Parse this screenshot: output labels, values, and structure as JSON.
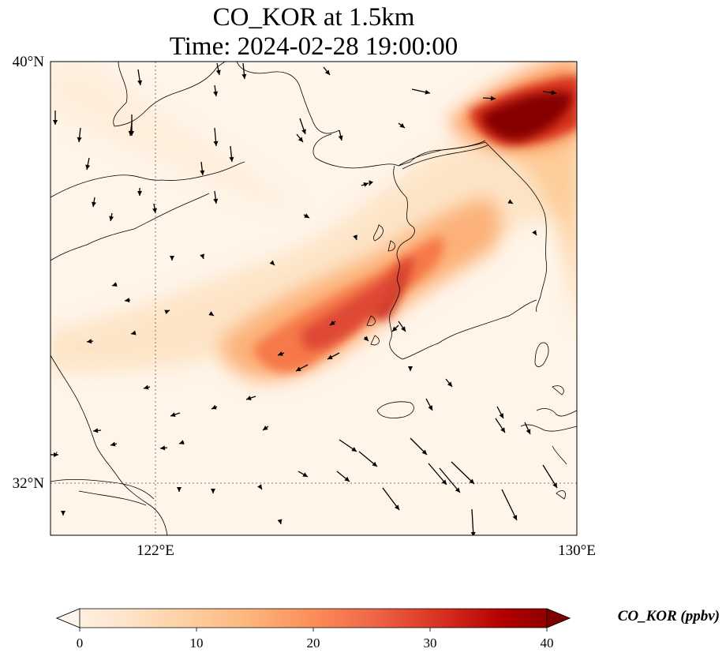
{
  "title": {
    "line1": "CO_KOR at 1.5km",
    "line2": "Time: 2024-02-28 19:00:00"
  },
  "axes": {
    "lat_labels": [
      {
        "value": 40,
        "text": "40°N"
      },
      {
        "value": 32,
        "text": "32°N"
      }
    ],
    "lon_labels": [
      {
        "value": 122,
        "text": "122°E"
      },
      {
        "value": 130,
        "text": "130°E"
      }
    ],
    "lon_range": [
      120,
      130
    ],
    "lat_range": [
      31,
      40
    ],
    "gridlines": "dotted at 122°E and 32°N"
  },
  "colorbar": {
    "title": "CO_KOR (ppbv)",
    "ticks": [
      "0",
      "10",
      "20",
      "30",
      "40"
    ],
    "range": [
      0,
      40
    ],
    "extend": "both",
    "colors": [
      "#fff5eb",
      "#fee6ce",
      "#fdd0a2",
      "#fdae6b",
      "#fd8d3c",
      "#f16913",
      "#d94801",
      "#a50f15",
      "#7f0000"
    ]
  },
  "chart_data": {
    "type": "heatmap",
    "variable": "CO_KOR",
    "units": "ppbv",
    "level": "1.5km",
    "time": "2024-02-28 19:00:00",
    "plumes": [
      {
        "region": "northeast (39°N, 128.5–130°E)",
        "value": 40
      },
      {
        "region": "along Korean west coast (34–36°N, 125–127°E)",
        "value": 28
      },
      {
        "region": "Korean peninsula / East Sea coast",
        "value": 15
      },
      {
        "region": "Yellow Sea band",
        "value": 8
      },
      {
        "region": "background",
        "value": 1
      }
    ]
  }
}
